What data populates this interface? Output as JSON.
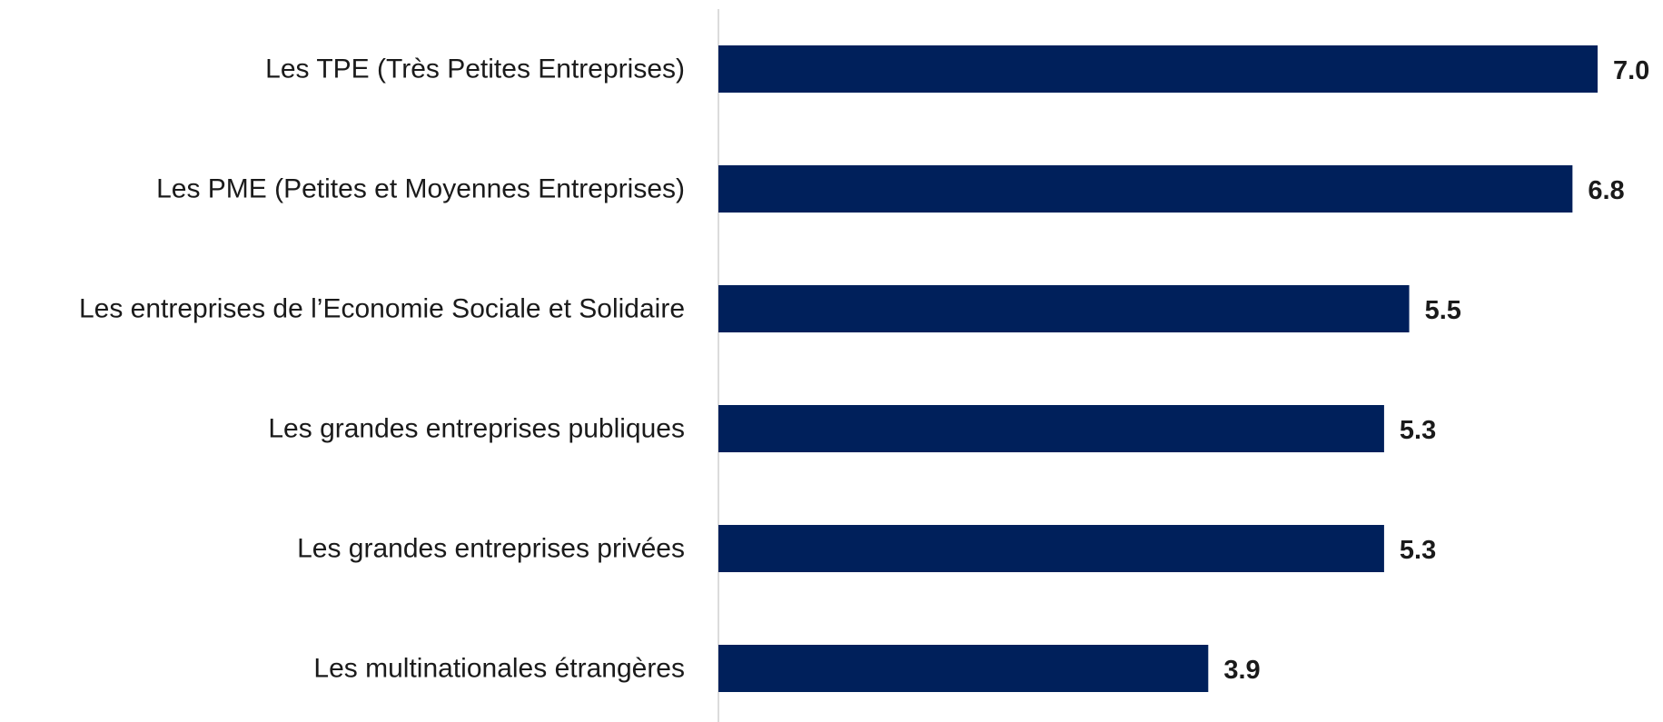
{
  "chart_data": {
    "type": "bar",
    "orientation": "horizontal",
    "categories": [
      "Les TPE (Très Petites Entreprises)",
      "Les PME (Petites et Moyennes Entreprises)",
      "Les entreprises de l’Economie Sociale et Solidaire",
      "Les grandes entreprises publiques",
      "Les grandes entreprises privées",
      "Les multinationales étrangères"
    ],
    "values": [
      7.0,
      6.8,
      5.5,
      5.3,
      5.3,
      3.9
    ],
    "value_labels": [
      "7.0",
      "6.8",
      "5.5",
      "5.3",
      "5.3",
      "3.9"
    ],
    "xlim": [
      0,
      7.4
    ],
    "grid": false,
    "legend": "none",
    "bar_color": "#00205B",
    "axis_color": "#d0d0d0"
  }
}
